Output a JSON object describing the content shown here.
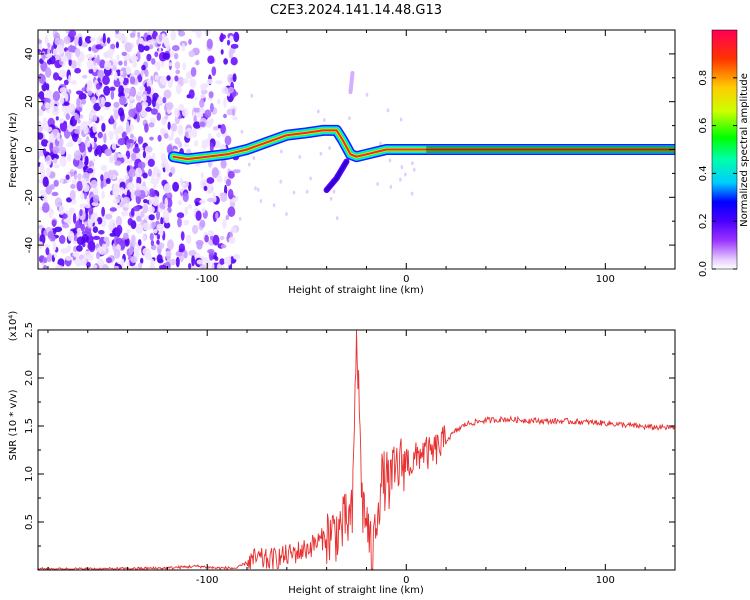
{
  "figure": {
    "title": "C2E3.2024.141.14.48.G13"
  },
  "chart_data": [
    {
      "type": "heatmap",
      "xlabel": "Height of straight line (km)",
      "ylabel": "Frequency (Hz)",
      "xlim": [
        -185,
        135
      ],
      "ylim": [
        -50,
        50
      ],
      "xticks": [
        -100,
        0,
        100
      ],
      "yticks": [
        -40,
        -20,
        0,
        20,
        40
      ],
      "colorbar": {
        "label": "Normalized spectral amplitude",
        "range": [
          0,
          1
        ],
        "ticks": [
          "0.0",
          "0.2",
          "0.4",
          "0.6",
          "0.8"
        ],
        "colormap": [
          "#ffffff",
          "#e6ccff",
          "#9933ff",
          "#4b00ff",
          "#0000ff",
          "#00ccff",
          "#00ffaa",
          "#00ff00",
          "#ccff00",
          "#ffcc00",
          "#ff3300",
          "#ff0055"
        ]
      },
      "features": {
        "noise_region_x": [
          -185,
          -85
        ],
        "doppler_trace": [
          {
            "x": -117,
            "f": -3
          },
          {
            "x": -110,
            "f": -4
          },
          {
            "x": -100,
            "f": -3
          },
          {
            "x": -90,
            "f": -2
          },
          {
            "x": -80,
            "f": 0
          },
          {
            "x": -70,
            "f": 3
          },
          {
            "x": -60,
            "f": 6
          },
          {
            "x": -50,
            "f": 7
          },
          {
            "x": -42,
            "f": 8
          },
          {
            "x": -35,
            "f": 8
          },
          {
            "x": -32,
            "f": 4
          },
          {
            "x": -28,
            "f": -2
          },
          {
            "x": -25,
            "f": -3
          },
          {
            "x": -20,
            "f": -2
          },
          {
            "x": -10,
            "f": 0
          },
          {
            "x": 0,
            "f": 0
          },
          {
            "x": 10,
            "f": 0
          },
          {
            "x": 135,
            "f": 0
          }
        ],
        "side_branch": [
          {
            "x": -40,
            "f": -17
          },
          {
            "x": -35,
            "f": -12
          },
          {
            "x": -30,
            "f": -5
          }
        ],
        "upper_blip": [
          {
            "x": -28,
            "f": 24
          },
          {
            "x": -27,
            "f": 32
          }
        ]
      }
    },
    {
      "type": "line",
      "xlabel": "Height of straight line (km)",
      "ylabel": "SNR (10 * v/v)",
      "yscale_label": "(x10⁴)",
      "xlim": [
        -185,
        135
      ],
      "ylim": [
        0,
        2.5
      ],
      "xticks": [
        -100,
        0,
        100
      ],
      "yticks": [
        "0.5",
        "1.0",
        "1.5",
        "2.0",
        "2.5"
      ],
      "color": "#e83030",
      "series": [
        {
          "x": [
            -185,
            -150,
            -120,
            -105,
            -95,
            -85,
            -80,
            -75,
            -70,
            -60,
            -50,
            -40,
            -35,
            -30,
            -27,
            -25,
            -22,
            -20,
            -17,
            -15,
            -12,
            -8,
            -5,
            0,
            3,
            8,
            12,
            20,
            25,
            30,
            40,
            50,
            60,
            70,
            80,
            90,
            100,
            110,
            120,
            135
          ],
          "values": [
            0.01,
            0.01,
            0.02,
            0.04,
            0.02,
            0.02,
            0.08,
            0.12,
            0.1,
            0.15,
            0.22,
            0.35,
            0.4,
            0.5,
            0.55,
            2.5,
            0.65,
            0.55,
            0.05,
            0.6,
            0.95,
            0.9,
            1.05,
            1.15,
            1.1,
            1.25,
            1.2,
            1.35,
            1.45,
            1.52,
            1.56,
            1.57,
            1.56,
            1.55,
            1.55,
            1.54,
            1.53,
            1.51,
            1.49,
            1.48
          ]
        }
      ]
    }
  ]
}
